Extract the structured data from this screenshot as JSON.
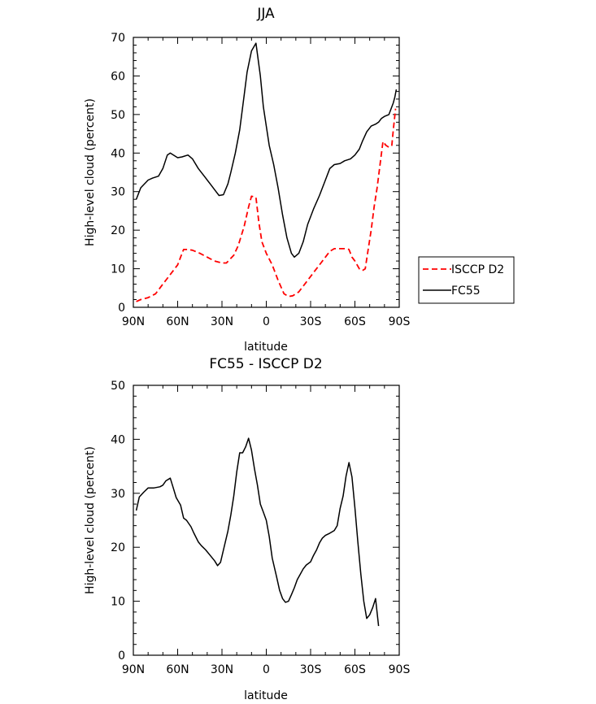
{
  "chart_data": [
    {
      "type": "line",
      "title": "JJA",
      "xlabel": "latitude",
      "ylabel": "High-level cloud (percent)",
      "xlim": [
        90,
        -90
      ],
      "ylim": [
        0,
        70
      ],
      "xticks": [
        90,
        60,
        30,
        0,
        -30,
        -60,
        -90
      ],
      "xtick_labels": [
        "90N",
        "60N",
        "30N",
        "0",
        "30S",
        "60S",
        "90S"
      ],
      "yticks": [
        0,
        10,
        20,
        30,
        40,
        50,
        60,
        70
      ],
      "ytick_labels": [
        "0",
        "10",
        "20",
        "30",
        "40",
        "50",
        "60",
        "70"
      ],
      "legend": {
        "position": "right",
        "entries": [
          "ISCCP D2",
          "FC55"
        ]
      },
      "series": [
        {
          "name": "ISCCP D2",
          "color": "#ff0000",
          "dash": "dashed",
          "points": [
            [
              88,
              1.5
            ],
            [
              85,
              2
            ],
            [
              80,
              2.5
            ],
            [
              75,
              3.5
            ],
            [
              70,
              6
            ],
            [
              65,
              8.5
            ],
            [
              60,
              11
            ],
            [
              58,
              13
            ],
            [
              56,
              15
            ],
            [
              53,
              15
            ],
            [
              50,
              14.8
            ],
            [
              45,
              14
            ],
            [
              40,
              13
            ],
            [
              35,
              12
            ],
            [
              30,
              11.5
            ],
            [
              27,
              11.5
            ],
            [
              22,
              13.5
            ],
            [
              19,
              16
            ],
            [
              15,
              21
            ],
            [
              12,
              26
            ],
            [
              10,
              28.8
            ],
            [
              7,
              28.5
            ],
            [
              5,
              22
            ],
            [
              3,
              17
            ],
            [
              0,
              14
            ],
            [
              -4,
              11
            ],
            [
              -8,
              7
            ],
            [
              -12,
              3.5
            ],
            [
              -15,
              2.8
            ],
            [
              -18,
              3
            ],
            [
              -22,
              4
            ],
            [
              -27,
              6.5
            ],
            [
              -32,
              9
            ],
            [
              -37,
              11.5
            ],
            [
              -40,
              13
            ],
            [
              -43,
              14.5
            ],
            [
              -46,
              15.2
            ],
            [
              -50,
              15.2
            ],
            [
              -54,
              15.2
            ],
            [
              -56,
              15
            ],
            [
              -58,
              13
            ],
            [
              -60,
              12
            ],
            [
              -63,
              10
            ],
            [
              -65,
              9.5
            ],
            [
              -67,
              10
            ],
            [
              -69,
              15
            ],
            [
              -71,
              20
            ],
            [
              -73,
              26
            ],
            [
              -75,
              31
            ],
            [
              -77,
              37
            ],
            [
              -79,
              43
            ],
            [
              -81,
              42
            ],
            [
              -83,
              41.5
            ],
            [
              -85,
              42
            ],
            [
              -86,
              46
            ],
            [
              -87.5,
              51.5
            ]
          ]
        },
        {
          "name": "FC55",
          "color": "#000000",
          "dash": "solid",
          "points": [
            [
              88,
              28
            ],
            [
              85,
              31
            ],
            [
              80,
              33
            ],
            [
              77,
              33.5
            ],
            [
              73,
              34
            ],
            [
              70,
              36
            ],
            [
              67,
              39.5
            ],
            [
              65,
              40
            ],
            [
              60,
              38.8
            ],
            [
              57,
              39
            ],
            [
              53,
              39.5
            ],
            [
              50,
              38.5
            ],
            [
              46,
              36
            ],
            [
              42,
              34
            ],
            [
              38,
              32
            ],
            [
              34,
              30
            ],
            [
              32,
              29
            ],
            [
              29,
              29.2
            ],
            [
              26,
              32
            ],
            [
              24,
              35
            ],
            [
              21,
              40
            ],
            [
              18,
              46
            ],
            [
              15,
              55
            ],
            [
              13,
              61
            ],
            [
              10,
              66.5
            ],
            [
              7,
              68.5
            ],
            [
              4,
              60
            ],
            [
              2,
              52
            ],
            [
              0,
              47
            ],
            [
              -2,
              42
            ],
            [
              -5,
              37
            ],
            [
              -8,
              31
            ],
            [
              -11,
              24
            ],
            [
              -14,
              18
            ],
            [
              -17,
              14
            ],
            [
              -19,
              13
            ],
            [
              -22,
              14
            ],
            [
              -25,
              17
            ],
            [
              -28,
              21.5
            ],
            [
              -32,
              25.5
            ],
            [
              -36,
              29
            ],
            [
              -40,
              33
            ],
            [
              -43,
              36
            ],
            [
              -46,
              37
            ],
            [
              -50,
              37.3
            ],
            [
              -53,
              38
            ],
            [
              -57,
              38.5
            ],
            [
              -60,
              39.5
            ],
            [
              -63,
              41
            ],
            [
              -65,
              43
            ],
            [
              -68,
              45.5
            ],
            [
              -71,
              47
            ],
            [
              -74,
              47.5
            ],
            [
              -76,
              48
            ],
            [
              -78,
              49
            ],
            [
              -80,
              49.5
            ],
            [
              -83,
              50
            ],
            [
              -85,
              52
            ],
            [
              -86,
              53
            ],
            [
              -87,
              54.5
            ],
            [
              -88,
              56.5
            ]
          ]
        }
      ]
    },
    {
      "type": "line",
      "title": "FC55 - ISCCP D2",
      "xlabel": "latitude",
      "ylabel": "High-level cloud (percent)",
      "xlim": [
        90,
        -90
      ],
      "ylim": [
        0,
        50
      ],
      "xticks": [
        90,
        60,
        30,
        0,
        -30,
        -60,
        -90
      ],
      "xtick_labels": [
        "90N",
        "60N",
        "30N",
        "0",
        "30S",
        "60S",
        "90S"
      ],
      "yticks": [
        0,
        10,
        20,
        30,
        40,
        50
      ],
      "ytick_labels": [
        "0",
        "10",
        "20",
        "30",
        "40",
        "50"
      ],
      "series": [
        {
          "color": "#000000",
          "dash": "solid",
          "points": [
            [
              88,
              26.8
            ],
            [
              86,
              29.3
            ],
            [
              83,
              30.2
            ],
            [
              80,
              31
            ],
            [
              76,
              31
            ],
            [
              72,
              31.2
            ],
            [
              70,
              31.5
            ],
            [
              68,
              32.3
            ],
            [
              65,
              32.8
            ],
            [
              63,
              31
            ],
            [
              61,
              29.2
            ],
            [
              58,
              27.8
            ],
            [
              56,
              25.4
            ],
            [
              54,
              25
            ],
            [
              51,
              23.8
            ],
            [
              49,
              22.6
            ],
            [
              46,
              21
            ],
            [
              44,
              20.3
            ],
            [
              41,
              19.5
            ],
            [
              38,
              18.5
            ],
            [
              35,
              17.5
            ],
            [
              33,
              16.6
            ],
            [
              31,
              17.2
            ],
            [
              29,
              19.5
            ],
            [
              26,
              23
            ],
            [
              24,
              26
            ],
            [
              22,
              29.5
            ],
            [
              20,
              34
            ],
            [
              18,
              37.5
            ],
            [
              16,
              37.5
            ],
            [
              14,
              38.6
            ],
            [
              12,
              40.2
            ],
            [
              10,
              38
            ],
            [
              8,
              34.5
            ],
            [
              6,
              31.5
            ],
            [
              4,
              28
            ],
            [
              2,
              26.5
            ],
            [
              0,
              25
            ],
            [
              -2,
              22
            ],
            [
              -4,
              18
            ],
            [
              -7,
              14.5
            ],
            [
              -9,
              12
            ],
            [
              -11,
              10.5
            ],
            [
              -13,
              9.8
            ],
            [
              -15,
              10
            ],
            [
              -17,
              11.2
            ],
            [
              -19,
              12.5
            ],
            [
              -21,
              14
            ],
            [
              -23,
              15
            ],
            [
              -25,
              16
            ],
            [
              -27,
              16.7
            ],
            [
              -30,
              17.3
            ],
            [
              -32,
              18.5
            ],
            [
              -34,
              19.5
            ],
            [
              -36,
              20.8
            ],
            [
              -38,
              21.7
            ],
            [
              -40,
              22.2
            ],
            [
              -43,
              22.6
            ],
            [
              -46,
              23.1
            ],
            [
              -48,
              24
            ],
            [
              -50,
              27.2
            ],
            [
              -52,
              29.5
            ],
            [
              -54,
              33.2
            ],
            [
              -56,
              35.7
            ],
            [
              -58,
              33
            ],
            [
              -60,
              27.3
            ],
            [
              -62,
              21
            ],
            [
              -64,
              15
            ],
            [
              -66,
              10
            ],
            [
              -68,
              6.8
            ],
            [
              -70,
              7.5
            ],
            [
              -72,
              8.8
            ],
            [
              -74,
              10.5
            ],
            [
              -76,
              5.4
            ]
          ]
        }
      ]
    }
  ]
}
